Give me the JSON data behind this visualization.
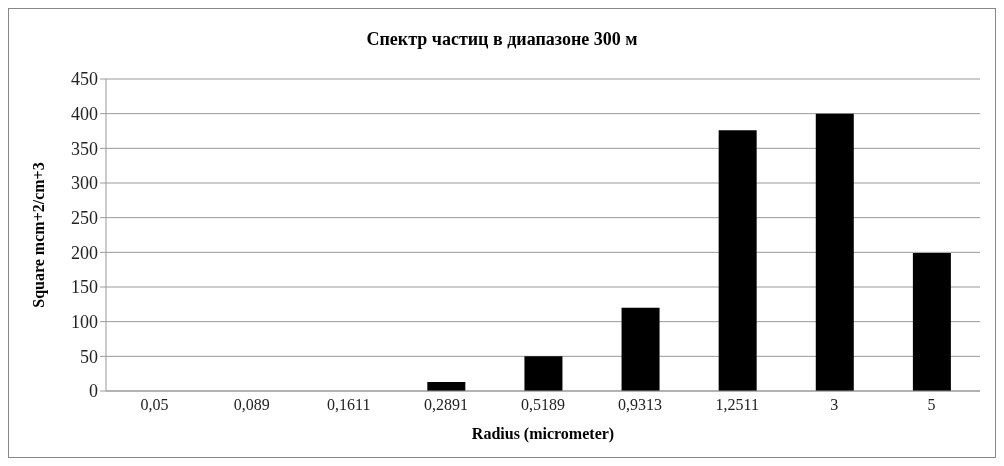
{
  "chart_data": {
    "type": "bar",
    "title": "Спектр частиц в диапазоне 300 м",
    "xlabel": "Radius (micrometer)",
    "ylabel": "Square mcm+2/cm+3",
    "categories": [
      "0,05",
      "0,089",
      "0,1611",
      "0,2891",
      "0,5189",
      "0,9313",
      "1,2511",
      "3",
      "5"
    ],
    "values": [
      0,
      0,
      0,
      13,
      50,
      120,
      376,
      400,
      199
    ],
    "color": "#000000",
    "ylim": [
      0,
      450
    ],
    "yticks": [
      0,
      50,
      100,
      150,
      200,
      250,
      300,
      350,
      400,
      450
    ],
    "grid": "y"
  }
}
